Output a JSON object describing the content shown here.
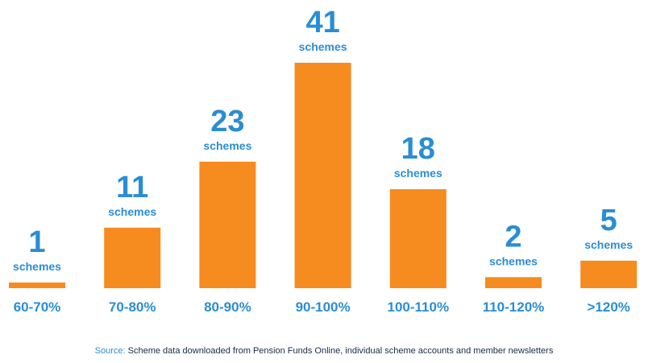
{
  "chart_data": {
    "type": "bar",
    "categories": [
      "60-70%",
      "70-80%",
      "80-90%",
      "90-100%",
      "100-110%",
      "110-120%",
      ">120%"
    ],
    "values": [
      1,
      11,
      23,
      41,
      18,
      2,
      5
    ],
    "unit_label": "schemes",
    "colors": {
      "bar": "#f68b1f",
      "text": "#2a8dd4"
    }
  },
  "source": {
    "label": "Source:",
    "text": "Scheme data downloaded from Pension Funds Online, individual scheme accounts and member newsletters"
  }
}
